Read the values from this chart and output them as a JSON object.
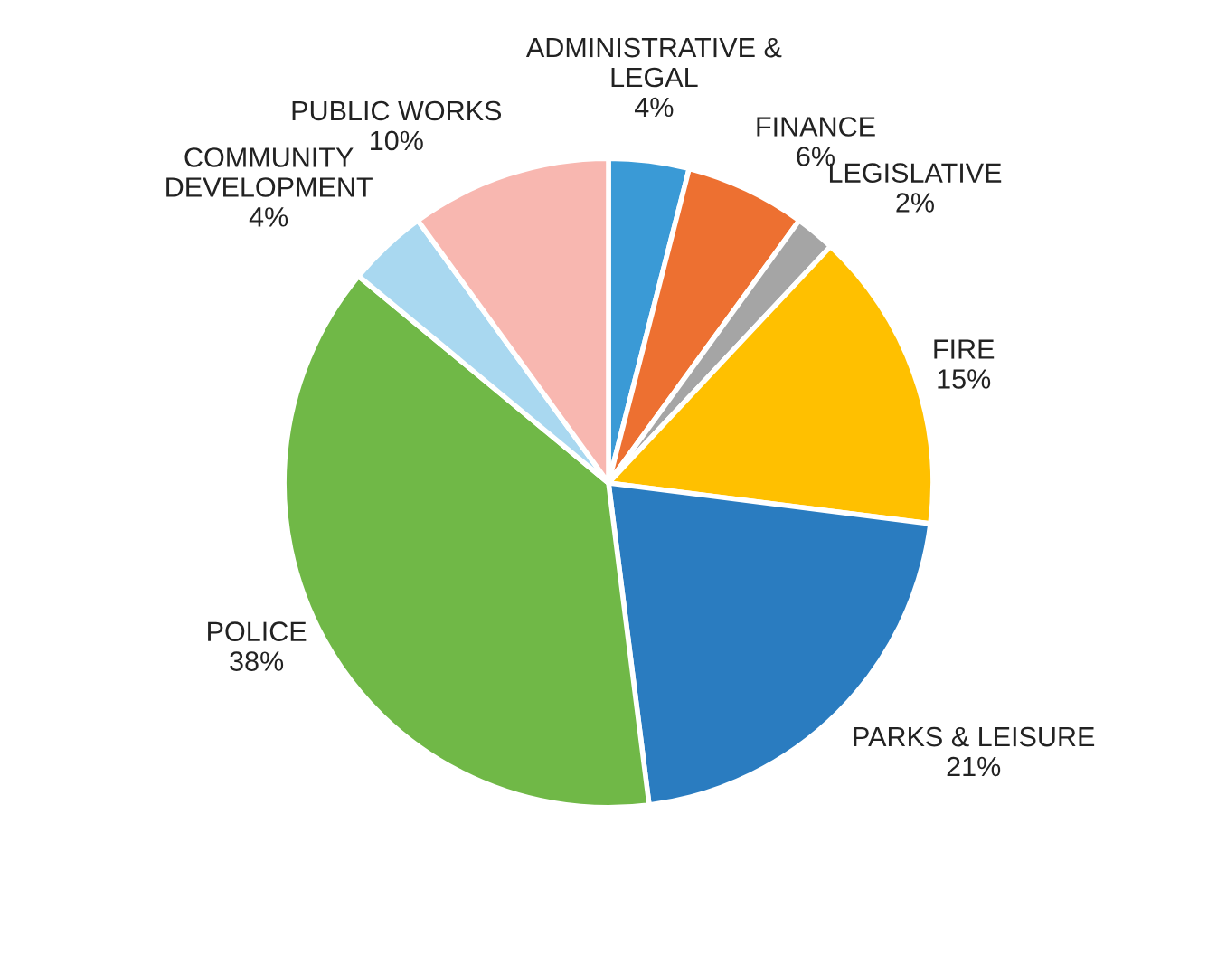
{
  "chart_data": {
    "type": "pie",
    "categories": [
      "ADMINISTRATIVE &\nLEGAL",
      "FINANCE",
      "LEGISLATIVE",
      "FIRE",
      "PARKS & LEISURE",
      "POLICE",
      "COMMUNITY\nDEVELOPMENT",
      "PUBLIC WORKS"
    ],
    "values": [
      4,
      6,
      2,
      15,
      21,
      38,
      4,
      10
    ],
    "value_labels": [
      "4%",
      "6%",
      "2%",
      "15%",
      "21%",
      "38%",
      "4%",
      "10%"
    ],
    "colors": [
      "#3a9ad6",
      "#ed7031",
      "#a5a5a5",
      "#ffc000",
      "#2a7cc0",
      "#70b847",
      "#a9d8f0",
      "#f8b7b0"
    ],
    "legend": false
  }
}
